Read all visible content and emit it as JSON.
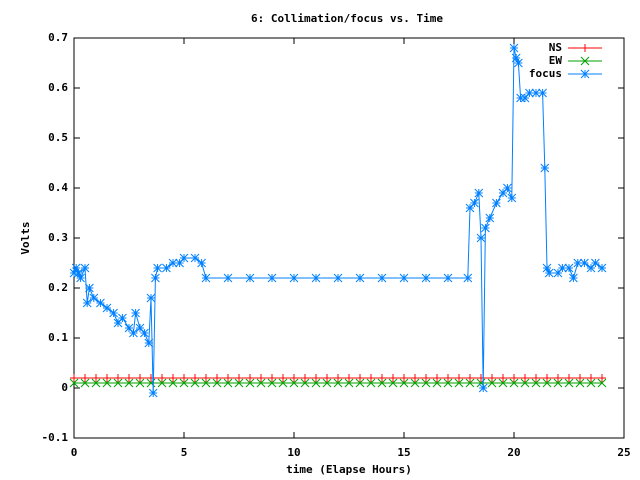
{
  "chart_data": {
    "type": "line",
    "title": "6: Collimation/focus vs. Time",
    "x_label": "time (Elapse Hours)",
    "y_label": "Volts",
    "xlim": [
      0,
      25
    ],
    "xticks": [
      0,
      5,
      10,
      15,
      20,
      25
    ],
    "ylim": [
      -0.1,
      0.7
    ],
    "yticks": [
      -0.1,
      0,
      0.1,
      0.2,
      0.3,
      0.4,
      0.5,
      0.6,
      0.7
    ],
    "legend": "top-right",
    "series": [
      {
        "name": "NS",
        "color": "#ff0000",
        "marker": "plus",
        "x": [
          0,
          0.5,
          1,
          1.5,
          2,
          2.5,
          3,
          3.5,
          4,
          4.5,
          5,
          5.5,
          6,
          6.5,
          7,
          7.5,
          8,
          8.5,
          9,
          9.5,
          10,
          10.5,
          11,
          11.5,
          12,
          12.5,
          13,
          13.5,
          14,
          14.5,
          15,
          15.5,
          16,
          16.5,
          17,
          17.5,
          18,
          18.5,
          19,
          19.5,
          20,
          20.5,
          21,
          21.5,
          22,
          22.5,
          23,
          23.5,
          24
        ],
        "values": [
          0.02,
          0.02,
          0.02,
          0.02,
          0.02,
          0.02,
          0.02,
          0.02,
          0.02,
          0.02,
          0.02,
          0.02,
          0.02,
          0.02,
          0.02,
          0.02,
          0.02,
          0.02,
          0.02,
          0.02,
          0.02,
          0.02,
          0.02,
          0.02,
          0.02,
          0.02,
          0.02,
          0.02,
          0.02,
          0.02,
          0.02,
          0.02,
          0.02,
          0.02,
          0.02,
          0.02,
          0.02,
          0.02,
          0.02,
          0.02,
          0.02,
          0.02,
          0.02,
          0.02,
          0.02,
          0.02,
          0.02,
          0.02,
          0.02
        ]
      },
      {
        "name": "EW",
        "color": "#00a000",
        "marker": "cross",
        "x": [
          0,
          0.5,
          1,
          1.5,
          2,
          2.5,
          3,
          3.5,
          4,
          4.5,
          5,
          5.5,
          6,
          6.5,
          7,
          7.5,
          8,
          8.5,
          9,
          9.5,
          10,
          10.5,
          11,
          11.5,
          12,
          12.5,
          13,
          13.5,
          14,
          14.5,
          15,
          15.5,
          16,
          16.5,
          17,
          17.5,
          18,
          18.5,
          19,
          19.5,
          20,
          20.5,
          21,
          21.5,
          22,
          22.5,
          23,
          23.5,
          24
        ],
        "values": [
          0.01,
          0.01,
          0.01,
          0.01,
          0.01,
          0.01,
          0.01,
          0.01,
          0.01,
          0.01,
          0.01,
          0.01,
          0.01,
          0.01,
          0.01,
          0.01,
          0.01,
          0.01,
          0.01,
          0.01,
          0.01,
          0.01,
          0.01,
          0.01,
          0.01,
          0.01,
          0.01,
          0.01,
          0.01,
          0.01,
          0.01,
          0.01,
          0.01,
          0.01,
          0.01,
          0.01,
          0.01,
          0.01,
          0.01,
          0.01,
          0.01,
          0.01,
          0.01,
          0.01,
          0.01,
          0.01,
          0.01,
          0.01,
          0.01
        ]
      },
      {
        "name": "focus",
        "color": "#0080ff",
        "marker": "star",
        "x": [
          0,
          0.1,
          0.2,
          0.3,
          0.5,
          0.6,
          0.7,
          0.9,
          1.2,
          1.5,
          1.8,
          2,
          2.2,
          2.5,
          2.7,
          2.8,
          3,
          3.2,
          3.4,
          3.5,
          3.6,
          3.7,
          3.8,
          4.2,
          4.5,
          4.8,
          5,
          5.5,
          5.8,
          6,
          7,
          8,
          9,
          10,
          11,
          12,
          13,
          14,
          15,
          16,
          17,
          17.9,
          18,
          18.2,
          18.4,
          18.5,
          18.6,
          18.7,
          18.9,
          19.2,
          19.5,
          19.7,
          19.9,
          20,
          20.1,
          20.2,
          20.3,
          20.5,
          20.7,
          21,
          21.3,
          21.4,
          21.5,
          21.6,
          22,
          22.2,
          22.5,
          22.7,
          22.9,
          23.2,
          23.5,
          23.7,
          24
        ],
        "values": [
          0.23,
          0.24,
          0.23,
          0.22,
          0.24,
          0.17,
          0.2,
          0.18,
          0.17,
          0.16,
          0.15,
          0.13,
          0.14,
          0.12,
          0.11,
          0.15,
          0.12,
          0.11,
          0.09,
          0.18,
          -0.01,
          0.22,
          0.24,
          0.24,
          0.25,
          0.25,
          0.26,
          0.26,
          0.25,
          0.22,
          0.22,
          0.22,
          0.22,
          0.22,
          0.22,
          0.22,
          0.22,
          0.22,
          0.22,
          0.22,
          0.22,
          0.22,
          0.36,
          0.37,
          0.39,
          0.3,
          0,
          0.32,
          0.34,
          0.37,
          0.39,
          0.4,
          0.38,
          0.68,
          0.66,
          0.65,
          0.58,
          0.58,
          0.59,
          0.59,
          0.59,
          0.44,
          0.24,
          0.23,
          0.23,
          0.24,
          0.24,
          0.22,
          0.25,
          0.25,
          0.24,
          0.25,
          0.24
        ]
      }
    ]
  }
}
